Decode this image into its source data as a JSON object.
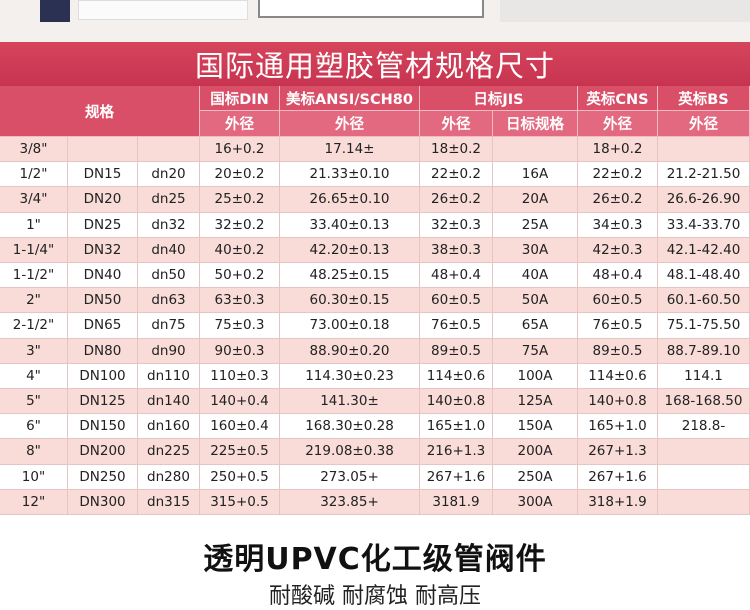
{
  "header": {
    "title": "国际通用塑胶管材规格尺寸"
  },
  "table": {
    "header_top": [
      "规格",
      "国标DIN",
      "美标ANSI/SCH80",
      "日标JIS",
      "英标CNS",
      "英标BS"
    ],
    "header_sub": [
      "外径",
      "外径",
      "外径",
      "日标规格",
      "外径",
      "外径"
    ],
    "rows": [
      [
        "3/8\"",
        null,
        null,
        "16+0.2",
        "17.14±",
        "18±0.2",
        null,
        "18+0.2",
        null
      ],
      [
        "1/2\"",
        "DN15",
        "dn20",
        "20±0.2",
        "21.33±0.10",
        "22±0.2",
        "16A",
        "22±0.2",
        "21.2-21.50"
      ],
      [
        "3/4\"",
        "DN20",
        "dn25",
        "25±0.2",
        "26.65±0.10",
        "26±0.2",
        "20A",
        "26±0.2",
        "26.6-26.90"
      ],
      [
        "1\"",
        "DN25",
        "dn32",
        "32±0.2",
        "33.40±0.13",
        "32±0.3",
        "25A",
        "34±0.3",
        "33.4-33.70"
      ],
      [
        "1-1/4\"",
        "DN32",
        "dn40",
        "40±0.2",
        "42.20±0.13",
        "38±0.3",
        "30A",
        "42±0.3",
        "42.1-42.40"
      ],
      [
        "1-1/2\"",
        "DN40",
        "dn50",
        "50+0.2",
        "48.25±0.15",
        "48+0.4",
        "40A",
        "48+0.4",
        "48.1-48.40"
      ],
      [
        "2\"",
        "DN50",
        "dn63",
        "63±0.3",
        "60.30±0.15",
        "60±0.5",
        "50A",
        "60±0.5",
        "60.1-60.50"
      ],
      [
        "2-1/2\"",
        "DN65",
        "dn75",
        "75±0.3",
        "73.00±0.18",
        "76±0.5",
        "65A",
        "76±0.5",
        "75.1-75.50"
      ],
      [
        "3\"",
        "DN80",
        "dn90",
        "90±0.3",
        "88.90±0.20",
        "89±0.5",
        "75A",
        "89±0.5",
        "88.7-89.10"
      ],
      [
        "4\"",
        "DN100",
        "dn110",
        "110±0.3",
        "114.30±0.23",
        "114±0.6",
        "100A",
        "114±0.6",
        "114.1"
      ],
      [
        "5\"",
        "DN125",
        "dn140",
        "140+0.4",
        "141.30±",
        "140±0.8",
        "125A",
        "140+0.8",
        "168-168.50"
      ],
      [
        "6\"",
        "DN150",
        "dn160",
        "160±0.4",
        "168.30±0.28",
        "165±1.0",
        "150A",
        "165+1.0",
        "218.8-"
      ],
      [
        "8\"",
        "DN200",
        "dn225",
        "225±0.5",
        "219.08±0.38",
        "216+1.3",
        "200A",
        "267+1.3",
        null
      ],
      [
        "10\"",
        "DN250",
        "dn280",
        "250+0.5",
        "273.05+",
        "267+1.6",
        "250A",
        "267+1.6",
        null
      ],
      [
        "12\"",
        "DN300",
        "dn315",
        "315+0.5",
        "323.85+",
        "3181.9",
        "300A",
        "318+1.9",
        null
      ]
    ]
  },
  "footer": {
    "title": "透明UPVC化工级管阀件",
    "subtitle": "耐酸碱 耐腐蚀 耐高压"
  }
}
